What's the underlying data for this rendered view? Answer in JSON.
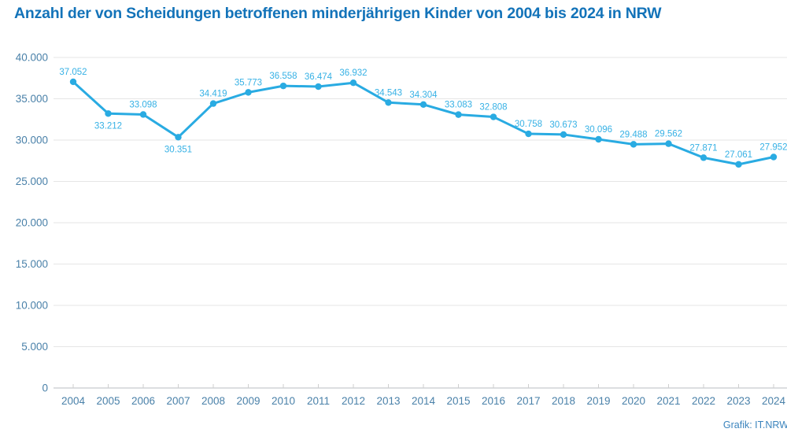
{
  "page": {
    "title": "Anzahl der von Scheidungen betroffenen minderjährigen Kinder von 2004 bis 2024 in NRW",
    "source_credit": "Grafik: IT.NRW"
  },
  "chart_data": {
    "type": "line",
    "title": "Anzahl der von Scheidungen betroffenen minderjährigen Kinder von 2004 bis 2024 in NRW",
    "xlabel": "",
    "ylabel": "",
    "x": [
      2004,
      2005,
      2006,
      2007,
      2008,
      2009,
      2010,
      2011,
      2012,
      2013,
      2014,
      2015,
      2016,
      2017,
      2018,
      2019,
      2020,
      2021,
      2022,
      2023,
      2024
    ],
    "values": [
      37052,
      33212,
      33098,
      30351,
      34419,
      35773,
      36558,
      36474,
      36932,
      34543,
      34304,
      33083,
      32808,
      30758,
      30673,
      30096,
      29488,
      29562,
      27871,
      27061,
      27952
    ],
    "value_labels": [
      "37.052",
      "33.212",
      "33.098",
      "30.351",
      "34.419",
      "35.773",
      "36.558",
      "36.474",
      "36.932",
      "34.543",
      "34.304",
      "33.083",
      "32.808",
      "30.758",
      "30.673",
      "30.096",
      "29.488",
      "29.562",
      "27.871",
      "27.061",
      "27.952"
    ],
    "label_below_x": [
      2005,
      2007
    ],
    "ylim": [
      0,
      40000
    ],
    "y_ticks": [
      0,
      5000,
      10000,
      15000,
      20000,
      25000,
      30000,
      35000,
      40000
    ],
    "y_tick_labels": [
      "0",
      "5.000",
      "10.000",
      "15.000",
      "20.000",
      "25.000",
      "30.000",
      "35.000",
      "40.000"
    ],
    "grid": true,
    "legend_position": "none",
    "colors": {
      "line": "#29abe2",
      "marker": "#29abe2",
      "data_label": "#36b1e5",
      "title": "#1373b9",
      "axis_label": "#4a81a9",
      "source": "#3b84bd",
      "gridline": "#e5e5e5",
      "axis_line": "#c7cace",
      "tick": "#cfcfcf"
    }
  }
}
